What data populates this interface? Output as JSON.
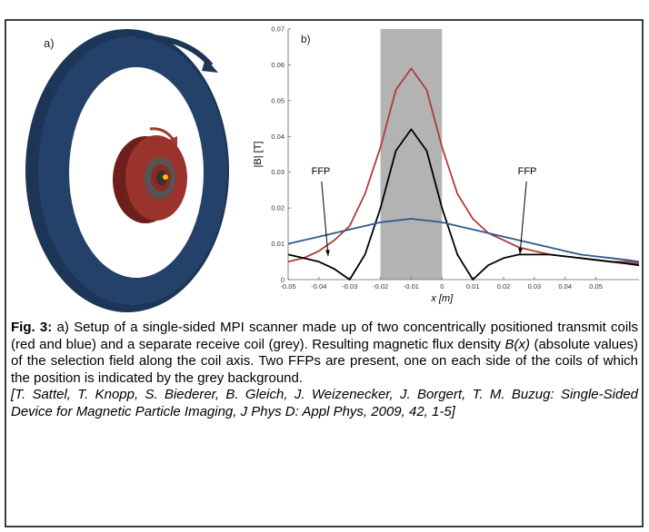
{
  "panel_a": {
    "label": "a)"
  },
  "chart_data": {
    "type": "line",
    "panel_label": "b)",
    "xlabel": "x [m]",
    "ylabel": "|B| [T]",
    "x": [
      -0.05,
      -0.045,
      -0.04,
      -0.035,
      -0.03,
      -0.025,
      -0.02,
      -0.015,
      -0.01,
      -0.005,
      0,
      0.005,
      0.01,
      0.015,
      0.02,
      0.025,
      0.03,
      0.035,
      0.04,
      0.045,
      0.05,
      0.055,
      0.06,
      0.064
    ],
    "series": [
      {
        "color": "#b03a3a",
        "values": [
          0.005,
          0.006,
          0.008,
          0.011,
          0.015,
          0.024,
          0.037,
          0.053,
          0.059,
          0.053,
          0.037,
          0.024,
          0.017,
          0.013,
          0.011,
          0.009,
          0.008,
          0.007,
          0.0065,
          0.006,
          0.0055,
          0.005,
          0.005,
          0.0045
        ]
      },
      {
        "color": "#000000",
        "values": [
          0.007,
          0.006,
          0.005,
          0.003,
          0,
          0.007,
          0.02,
          0.036,
          0.042,
          0.036,
          0.02,
          0.007,
          0,
          0.004,
          0.006,
          0.007,
          0.007,
          0.007,
          0.0065,
          0.006,
          0.0055,
          0.005,
          0.0045,
          0.004
        ]
      },
      {
        "color": "#2e5a8c",
        "values": [
          0.01,
          0.011,
          0.012,
          0.013,
          0.014,
          0.015,
          0.016,
          0.0165,
          0.017,
          0.0165,
          0.016,
          0.015,
          0.014,
          0.013,
          0.012,
          0.011,
          0.01,
          0.009,
          0.008,
          0.007,
          0.0065,
          0.006,
          0.0055,
          0.005
        ]
      }
    ],
    "shaded_region": [
      -0.02,
      0
    ],
    "annotations": [
      {
        "text": "FFP"
      },
      {
        "text": "FFP"
      }
    ],
    "xlim": [
      -0.05,
      0.064
    ],
    "ylim": [
      0,
      0.07
    ],
    "xticks": [
      -0.05,
      -0.04,
      -0.03,
      -0.02,
      -0.01,
      0,
      0.01,
      0.02,
      0.03,
      0.04,
      0.05
    ],
    "yticks": [
      0,
      0.01,
      0.02,
      0.03,
      0.04,
      0.05,
      0.06,
      0.07
    ]
  },
  "caption": {
    "label": "Fig. 3:",
    "text_before": " a) Setup of a single-sided MPI scanner made up of two concentrically positioned transmit coils (red and blue) and a separate receive coil (grey). Resulting magnetic flux density ",
    "formula": "B(x)",
    "text_after": " (absolute values) of the selection field along the coil axis. Two FFPs are present, one on each side of the coils of which the position is indicated by the grey background.",
    "reference": "[T. Sattel, T. Knopp, S. Biederer, B. Gleich, J. Weizenecker, J. Borgert, T. M. Buzug: Single-Sided Device for Magnetic Particle Imaging, J Phys D: Appl Phys, 2009, 42, 1-5]"
  }
}
